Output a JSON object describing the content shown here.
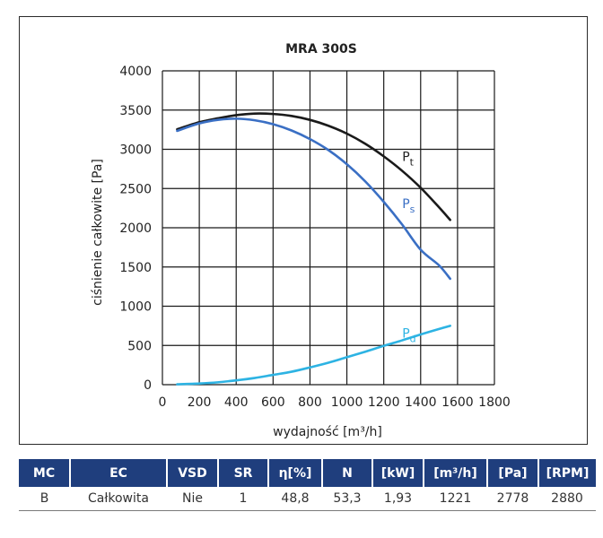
{
  "chart_data": {
    "type": "line",
    "title": "MRA 300S",
    "xlabel": "wydajność [m³/h]",
    "ylabel": "ciśnienie całkowite [Pa]",
    "xlim": [
      0,
      1800
    ],
    "ylim": [
      0,
      4000
    ],
    "x_ticks": [
      "0",
      "200",
      "400",
      "600",
      "800",
      "1000",
      "1200",
      "1400",
      "1600",
      "1800"
    ],
    "y_ticks": [
      "0",
      "500",
      "1000",
      "1500",
      "2000",
      "2500",
      "3000",
      "3500",
      "4000"
    ],
    "grid": true,
    "series": [
      {
        "name": "Pt",
        "label_main": "P",
        "label_sub": "t",
        "color": "#1a1a1a",
        "x": [
          80,
          200,
          300,
          400,
          500,
          600,
          700,
          800,
          900,
          1000,
          1100,
          1200,
          1300,
          1400,
          1500,
          1560
        ],
        "y": [
          3255,
          3345,
          3395,
          3435,
          3455,
          3450,
          3425,
          3375,
          3300,
          3200,
          3070,
          2910,
          2725,
          2510,
          2260,
          2100
        ]
      },
      {
        "name": "Ps",
        "label_main": "P",
        "label_sub": "s",
        "color": "#3a6fc4",
        "x": [
          80,
          200,
          300,
          400,
          500,
          600,
          700,
          800,
          900,
          1000,
          1100,
          1200,
          1300,
          1400,
          1500,
          1560
        ],
        "y": [
          3235,
          3330,
          3375,
          3390,
          3370,
          3320,
          3240,
          3130,
          2990,
          2810,
          2590,
          2330,
          2040,
          1720,
          1520,
          1350
        ]
      },
      {
        "name": "Pd",
        "label_main": "P",
        "label_sub": "d",
        "color": "#2db3e3",
        "x": [
          80,
          200,
          300,
          400,
          500,
          600,
          700,
          800,
          900,
          1000,
          1100,
          1200,
          1300,
          1400,
          1500,
          1560
        ],
        "y": [
          5,
          15,
          30,
          55,
          85,
          125,
          165,
          220,
          280,
          350,
          420,
          495,
          565,
          640,
          710,
          750
        ]
      }
    ]
  },
  "table": {
    "headers": [
      "MC",
      "EC",
      "VSD",
      "SR",
      "η[%]",
      "N",
      "[kW]",
      "[m³/h]",
      "[Pa]",
      "[RPM]"
    ],
    "row": [
      "B",
      "Całkowita",
      "Nie",
      "1",
      "48,8",
      "53,3",
      "1,93",
      "1221",
      "2778",
      "2880"
    ]
  }
}
